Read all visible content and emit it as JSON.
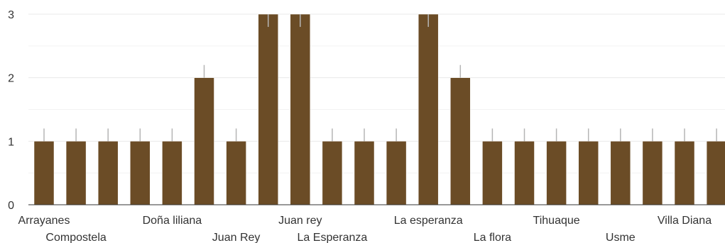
{
  "chart_data": {
    "type": "bar",
    "title": "",
    "xlabel": "",
    "ylabel": "",
    "ylim": [
      0,
      3
    ],
    "yticks": [
      0,
      1,
      2,
      3
    ],
    "grid": true,
    "categories": [
      "Arrayanes",
      "Compostela",
      "",
      "",
      "Doña liliana",
      "",
      "Juan Rey",
      "",
      "Juan rey",
      "La Esperanza",
      "",
      "",
      "La esperanza",
      "",
      "La flora",
      "",
      "Tihuaque",
      "",
      "Usme",
      "",
      "Villa Diana",
      ""
    ],
    "values": [
      1,
      1,
      1,
      1,
      1,
      2,
      1,
      3,
      3,
      1,
      1,
      1,
      3,
      2,
      1,
      1,
      1,
      1,
      1,
      1,
      1,
      1
    ],
    "error_upper": [
      0.2,
      0.2,
      0.2,
      0.2,
      0.2,
      0.2,
      0.2,
      0.2,
      0.2,
      0.2,
      0.2,
      0.2,
      0.2,
      0.2,
      0.2,
      0.2,
      0.2,
      0.2,
      0.2,
      0.2,
      0.2,
      0.2
    ],
    "colors": {
      "bar": "#6b4c26",
      "grid": "#e9e9e9",
      "axis": "#333333",
      "error": "#b5b5b5"
    }
  }
}
